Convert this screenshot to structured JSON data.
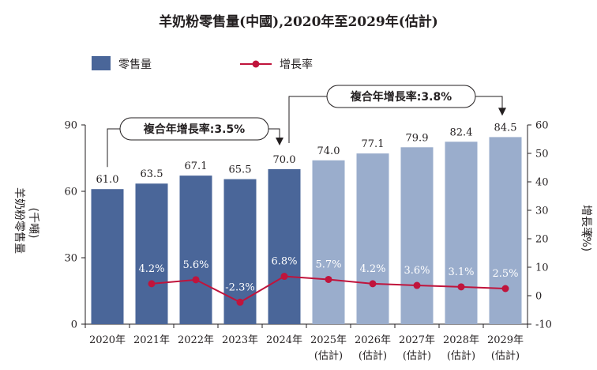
{
  "chart_data": {
    "type": "bar",
    "title": "羊奶粉零售量(中國),2020年至2029年(估計)",
    "categories": [
      "2020年",
      "2021年",
      "2022年",
      "2023年",
      "2024年",
      "2025年",
      "2026年",
      "2027年",
      "2028年",
      "2029年"
    ],
    "estimate_suffix": "(估計)",
    "estimated_from_index": 5,
    "series": [
      {
        "name": "零售量",
        "type": "bar",
        "axis": "left",
        "values": [
          61.0,
          63.5,
          67.1,
          65.5,
          70.0,
          74.0,
          77.1,
          79.9,
          82.4,
          84.5
        ],
        "value_labels": [
          "61.0",
          "63.5",
          "67.1",
          "65.5",
          "70.0",
          "74.0",
          "77.1",
          "79.9",
          "82.4",
          "84.5"
        ]
      },
      {
        "name": "增長率",
        "type": "line",
        "axis": "right",
        "unit": "%",
        "values": [
          null,
          4.2,
          5.6,
          -2.3,
          6.8,
          5.7,
          4.2,
          3.6,
          3.1,
          2.5
        ],
        "value_labels": [
          "",
          "4.2%",
          "5.6%",
          "-2.3%",
          "6.8%",
          "5.7%",
          "4.2%",
          "3.6%",
          "3.1%",
          "2.5%"
        ]
      }
    ],
    "ylabel": "羊奶粉零售量",
    "ylabel_unit": "(千噸)",
    "y2label": "增長率",
    "y2label_unit": "(%)",
    "ylim": [
      0,
      90
    ],
    "yticks": [
      "0",
      "30",
      "60",
      "90"
    ],
    "y2lim": [
      -10,
      60
    ],
    "y2ticks": [
      "-10",
      "0",
      "10",
      "20",
      "30",
      "40",
      "50",
      "60"
    ],
    "legend_placement": "top-left",
    "grid": false,
    "annotations": [
      {
        "text": "複合年增長率:3.5%",
        "from": "2020年",
        "to": "2024年"
      },
      {
        "text": "複合年增長率:3.8%",
        "from": "2024年",
        "to": "2029年"
      }
    ],
    "colors": {
      "bar_actual": "#4a6699",
      "bar_estimate": "#9aadcc",
      "line": "#c0143c",
      "text": "#231f20"
    }
  }
}
